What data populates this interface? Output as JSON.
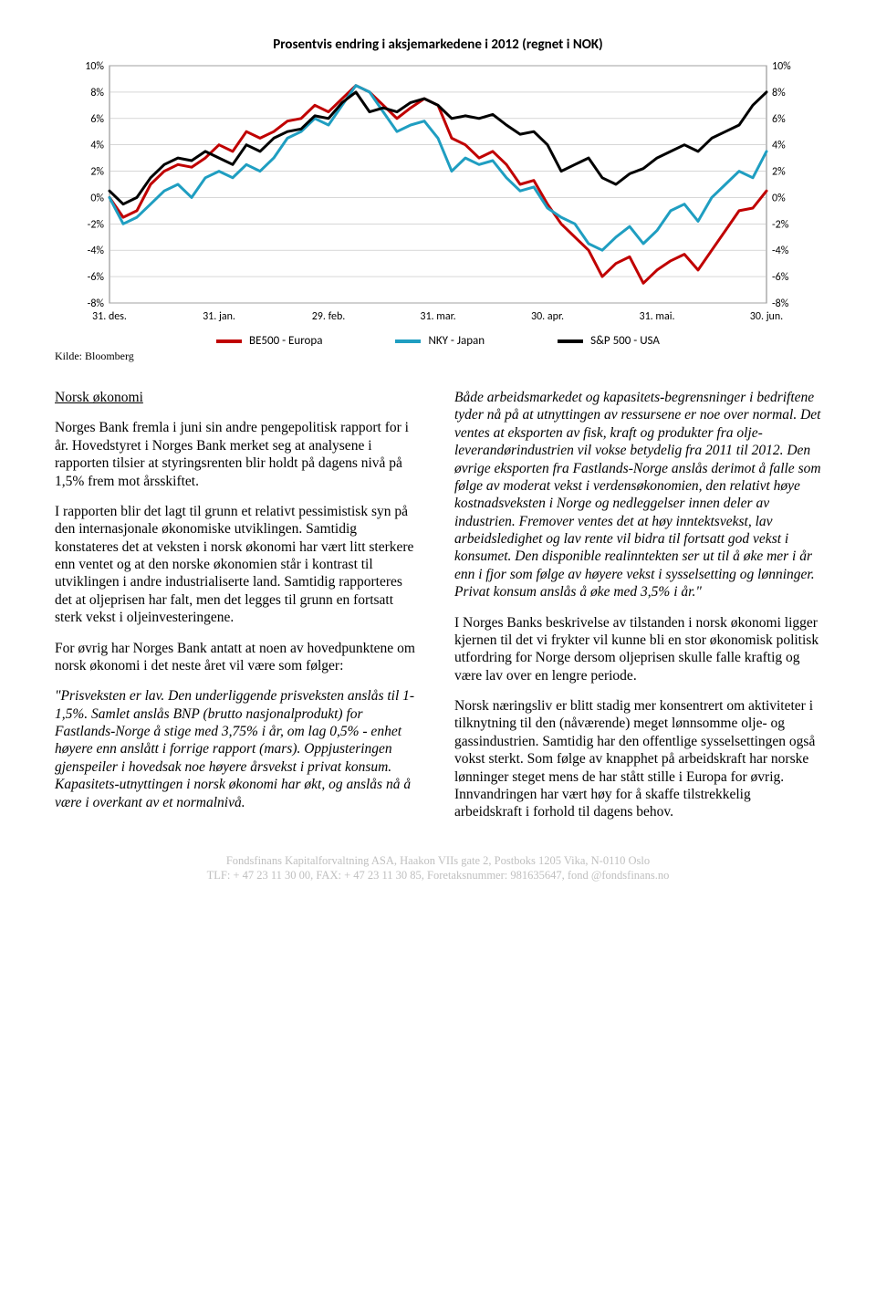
{
  "chart": {
    "title": "Prosentvis endring i aksjemarkedene i 2012 (regnet i NOK)",
    "type": "line",
    "x_labels": [
      "31. des.",
      "31. jan.",
      "29. feb.",
      "31. mar.",
      "30. apr.",
      "31. mai.",
      "30. jun."
    ],
    "y_ticks": [
      -8,
      -6,
      -4,
      -2,
      0,
      2,
      4,
      6,
      8,
      10
    ],
    "y_tick_labels": [
      "-8%",
      "-6%",
      "-4%",
      "-2%",
      "0%",
      "2%",
      "4%",
      "6%",
      "8%",
      "10%"
    ],
    "ylim": [
      -8,
      10
    ],
    "background_color": "#ffffff",
    "grid_color": "#bfbfbf",
    "axis_color": "#808080",
    "line_width": 3,
    "series": [
      {
        "name": "BE500 - Europa",
        "color": "#c00000",
        "values": [
          0,
          -1.5,
          -1,
          1,
          2,
          2.5,
          2.3,
          3,
          4,
          3.5,
          5,
          4.5,
          5,
          5.8,
          6,
          7,
          6.5,
          7.5,
          8.5,
          8,
          7,
          6,
          6.8,
          7.5,
          7,
          4.5,
          4,
          3,
          3.5,
          2.5,
          1,
          1.3,
          -0.5,
          -2,
          -3,
          -4,
          -6,
          -5,
          -4.5,
          -6.5,
          -5.5,
          -4.8,
          -4.3,
          -5.5,
          -4,
          -2.5,
          -1,
          -0.8,
          0.5
        ]
      },
      {
        "name": "NKY - Japan",
        "color": "#1f9ec1",
        "values": [
          0,
          -2,
          -1.5,
          -0.5,
          0.5,
          1,
          0,
          1.5,
          2,
          1.5,
          2.5,
          2,
          3,
          4.5,
          5,
          6,
          5.5,
          7,
          8.5,
          8,
          6.5,
          5,
          5.5,
          5.8,
          4.5,
          2,
          3,
          2.5,
          2.8,
          1.5,
          0.5,
          0.8,
          -0.8,
          -1.5,
          -2,
          -3.5,
          -4,
          -3,
          -2.2,
          -3.5,
          -2.5,
          -1,
          -0.5,
          -1.8,
          0,
          1,
          2,
          1.5,
          3.5
        ]
      },
      {
        "name": "S&P 500 - USA",
        "color": "#000000",
        "values": [
          0.5,
          -0.5,
          0,
          1.5,
          2.5,
          3,
          2.8,
          3.5,
          3,
          2.5,
          4,
          3.5,
          4.5,
          5,
          5.2,
          6.2,
          6,
          7.2,
          8,
          6.5,
          6.8,
          6.5,
          7.2,
          7.5,
          7,
          6,
          6.2,
          6,
          6.3,
          5.5,
          4.8,
          5,
          4,
          2,
          2.5,
          3,
          1.5,
          1,
          1.8,
          2.2,
          3,
          3.5,
          4,
          3.5,
          4.5,
          5,
          5.5,
          7,
          8
        ]
      }
    ]
  },
  "source_label": "Kilde: Bloomberg",
  "body": {
    "section_title": "Norsk økonomi",
    "p1": "Norges Bank fremla i juni sin andre pengepolitisk rapport for i år. Hovedstyret i Norges Bank merket seg at analysene i rapporten tilsier at styringsrenten blir holdt på dagens nivå på 1,5% frem mot årsskiftet.",
    "p2": "I rapporten blir det lagt til grunn et relativt pessimistisk syn på den internasjonale økonomiske utviklingen. Samtidig konstateres det at veksten i norsk økonomi har vært litt sterkere enn ventet og at den norske økonomien står i kontrast til utviklingen i andre industrialiserte land. Samtidig rapporteres det at oljeprisen har falt, men det legges til grunn en fortsatt sterk vekst i oljeinvesteringene.",
    "p3": "For øvrig har Norges Bank antatt at noen av hovedpunktene om norsk økonomi i det neste året vil være som følger:",
    "p4": "\"Prisveksten er lav. Den underliggende prisveksten anslås til 1-1,5%. Samlet anslås BNP (brutto nasjonalprodukt) for Fastlands-Norge å stige med 3,75% i år, om lag 0,5% - enhet høyere enn anslått i forrige rapport (mars). Oppjusteringen gjenspeiler i hovedsak noe høyere årsvekst i privat konsum. Kapasitets-utnyttingen i norsk økonomi har økt, og anslås nå å være i overkant av et normalnivå.",
    "p5": "Både arbeidsmarkedet og kapasitets-begrensninger i bedriftene tyder nå på at utnyttingen av ressursene er noe over normal. Det ventes at eksporten av fisk, kraft og produkter fra olje-leverandørindustrien vil vokse betydelig fra 2011 til 2012. Den øvrige eksporten fra Fastlands-Norge anslås derimot å falle som følge av moderat vekst i verdensøkonomien, den relativt høye kostnadsveksten i Norge og nedleggelser innen deler av industrien. Fremover ventes det at høy inntektsvekst, lav arbeidsledighet og lav rente vil bidra til fortsatt god vekst i konsumet. Den disponible realinntekten ser ut til å øke mer i år enn i fjor som følge av høyere vekst i sysselsetting og lønninger. Privat konsum anslås å øke med 3,5% i år.\"",
    "p6": "I Norges Banks beskrivelse av tilstanden i norsk økonomi ligger kjernen til det vi frykter vil kunne bli en stor økonomisk politisk utfordring for Norge dersom oljeprisen skulle falle kraftig og være lav over en lengre periode.",
    "p7": "Norsk næringsliv er blitt stadig mer konsentrert om aktiviteter i tilknytning til den (nåværende) meget lønnsomme olje- og gassindustrien. Samtidig har den offentlige sysselsettingen også vokst sterkt. Som følge av knapphet på arbeidskraft har norske lønninger steget mens de har stått stille i Europa for øvrig. Innvandringen har vært høy for å skaffe tilstrekkelig arbeidskraft i forhold til dagens behov."
  },
  "footer": {
    "line1": "Fondsfinans Kapitalforvaltning ASA, Haakon VIIs gate 2, Postboks 1205 Vika, N-0110 Oslo",
    "line2": "TLF: + 47 23 11 30 00, FAX: + 47 23 11 30 85, Foretaksnummer: 981635647, fond @fondsfinans.no"
  }
}
